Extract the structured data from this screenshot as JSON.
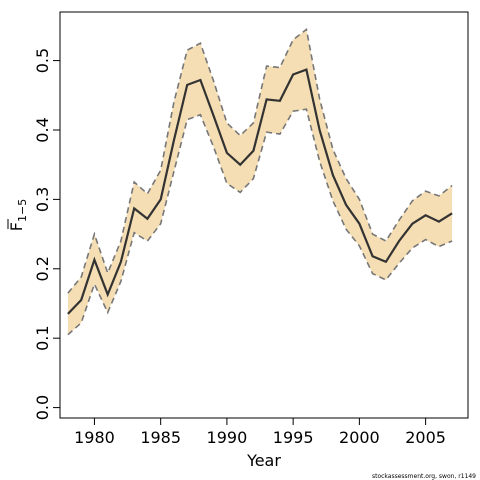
{
  "chart_data": {
    "type": "line",
    "xlabel": "Year",
    "ylabel": "F",
    "ylabel_sub": "1−5",
    "xlim": [
      1977.4,
      2008.2
    ],
    "ylim": [
      -0.015,
      0.57
    ],
    "x_ticks": [
      1980,
      1985,
      1990,
      1995,
      2000,
      2005
    ],
    "x_tick_labels": [
      "1980",
      "1985",
      "1990",
      "1995",
      "2000",
      "2005"
    ],
    "y_ticks": [
      0.0,
      0.1,
      0.2,
      0.3,
      0.4,
      0.5
    ],
    "y_tick_labels": [
      "0.0",
      "0.1",
      "0.2",
      "0.3",
      "0.4",
      "0.5"
    ],
    "grid": false,
    "band_color": "#f5deb3",
    "line_color": "#333333",
    "bound_color": "#777777",
    "x": [
      1978,
      1979,
      1980,
      1981,
      1982,
      1983,
      1984,
      1985,
      1986,
      1987,
      1988,
      1989,
      1990,
      1991,
      1992,
      1993,
      1994,
      1995,
      1996,
      1997,
      1998,
      1999,
      2000,
      2001,
      2002,
      2003,
      2004,
      2005,
      2006,
      2007
    ],
    "series": [
      {
        "values": [
          0.135,
          0.155,
          0.213,
          0.163,
          0.21,
          0.287,
          0.272,
          0.3,
          0.385,
          0.465,
          0.472,
          0.42,
          0.367,
          0.35,
          0.37,
          0.444,
          0.442,
          0.48,
          0.487,
          0.4,
          0.335,
          0.292,
          0.265,
          0.218,
          0.21,
          0.24,
          0.265,
          0.277,
          0.268,
          0.28
        ]
      },
      {
        "values": [
          0.165,
          0.188,
          0.25,
          0.194,
          0.24,
          0.325,
          0.308,
          0.342,
          0.44,
          0.515,
          0.525,
          0.47,
          0.41,
          0.392,
          0.41,
          0.492,
          0.49,
          0.53,
          0.545,
          0.445,
          0.372,
          0.33,
          0.3,
          0.25,
          0.24,
          0.27,
          0.298,
          0.312,
          0.305,
          0.32
        ]
      },
      {
        "values": [
          0.105,
          0.122,
          0.178,
          0.137,
          0.182,
          0.252,
          0.24,
          0.265,
          0.34,
          0.415,
          0.422,
          0.375,
          0.323,
          0.31,
          0.33,
          0.397,
          0.394,
          0.427,
          0.43,
          0.355,
          0.298,
          0.257,
          0.233,
          0.193,
          0.184,
          0.208,
          0.23,
          0.242,
          0.232,
          0.24
        ]
      }
    ]
  },
  "footer_text": "stockassessment.org, swon, r1149"
}
